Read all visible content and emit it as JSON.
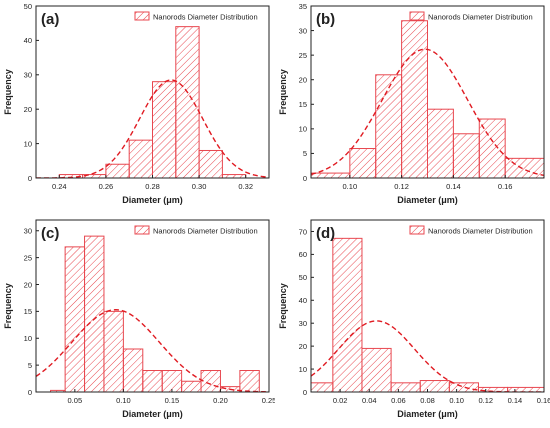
{
  "colors": {
    "bar_stroke": "#e8474f",
    "hatch": "#e8474f",
    "fit": "#e01b22",
    "axis": "#222222"
  },
  "chart_data": [
    {
      "type": "bar",
      "label": "(a)",
      "legend": "Nanorods Diameter Distribution",
      "legend_position": "top-right",
      "xlabel": "Diameter (μm)",
      "ylabel": "Frequency",
      "xlim": [
        0.23,
        0.33
      ],
      "ylim": [
        0,
        50
      ],
      "xticks": [
        0.24,
        0.26,
        0.28,
        0.3,
        0.32
      ],
      "xtick_labels": [
        "0.24",
        "0.26",
        "0.28",
        "0.30",
        "0.32"
      ],
      "yticks": [
        0,
        10,
        20,
        30,
        40,
        50
      ],
      "bin_edges": [
        0.24,
        0.25,
        0.26,
        0.27,
        0.28,
        0.29,
        0.3,
        0.31,
        0.32
      ],
      "values": [
        1,
        1,
        4,
        11,
        28,
        44,
        8,
        1
      ],
      "fit": {
        "mean": 0.288,
        "sd": 0.0135,
        "peak": 28.5
      },
      "grid": false
    },
    {
      "type": "bar",
      "label": "(b)",
      "legend": "Nanorods Diameter Distribution",
      "legend_position": "top-right",
      "xlabel": "Diameter (μm)",
      "ylabel": "Frequency",
      "xlim": [
        0.085,
        0.175
      ],
      "ylim": [
        0,
        35
      ],
      "xticks": [
        0.1,
        0.12,
        0.14,
        0.16
      ],
      "xtick_labels": [
        "0.10",
        "0.12",
        "0.14",
        "0.16"
      ],
      "yticks": [
        0,
        5,
        10,
        15,
        20,
        25,
        30,
        35
      ],
      "bin_edges": [
        0.085,
        0.1,
        0.11,
        0.12,
        0.13,
        0.14,
        0.15,
        0.16,
        0.175
      ],
      "values": [
        1,
        6,
        21,
        32,
        14,
        9,
        12,
        4
      ],
      "fit": {
        "mean": 0.129,
        "sd": 0.0165,
        "peak": 26.2
      },
      "grid": false
    },
    {
      "type": "bar",
      "label": "(c)",
      "legend": "Nanorods Diameter Distribution",
      "legend_position": "top-right",
      "xlabel": "Diameter (μm)",
      "ylabel": "Frequency",
      "xlim": [
        0.01,
        0.25
      ],
      "ylim": [
        0,
        32
      ],
      "xticks": [
        0.05,
        0.1,
        0.15,
        0.2,
        0.25
      ],
      "xtick_labels": [
        "0.05",
        "0.10",
        "0.15",
        "0.20",
        "0.25"
      ],
      "yticks": [
        0,
        5,
        10,
        15,
        20,
        25,
        30
      ],
      "bin_edges": [
        0.025,
        0.04,
        0.06,
        0.08,
        0.1,
        0.12,
        0.14,
        0.16,
        0.18,
        0.2,
        0.22,
        0.24
      ],
      "values": [
        0.3,
        27,
        29,
        15,
        8,
        4,
        4,
        2,
        4,
        1,
        4
      ],
      "fit": {
        "mean": 0.092,
        "sd": 0.045,
        "peak": 15.3
      },
      "grid": false
    },
    {
      "type": "bar",
      "label": "(d)",
      "legend": "Nanorods Diameter Distribution",
      "legend_position": "top-right",
      "xlabel": "Diameter (μm)",
      "ylabel": "Frequency",
      "xlim": [
        0.0,
        0.16
      ],
      "ylim": [
        0,
        75
      ],
      "xticks": [
        0.02,
        0.04,
        0.06,
        0.08,
        0.1,
        0.12,
        0.14,
        0.16
      ],
      "xtick_labels": [
        "0.02",
        "0.04",
        "0.06",
        "0.08",
        "0.10",
        "0.12",
        "0.14",
        "0.16"
      ],
      "yticks": [
        0,
        10,
        20,
        30,
        40,
        50,
        60,
        70
      ],
      "bin_edges": [
        0.0,
        0.015,
        0.035,
        0.055,
        0.075,
        0.095,
        0.115,
        0.135,
        0.16
      ],
      "values": [
        4,
        67,
        19,
        4,
        5,
        4,
        2,
        2
      ],
      "fit": {
        "mean": 0.045,
        "sd": 0.026,
        "peak": 31
      },
      "grid": false
    }
  ]
}
